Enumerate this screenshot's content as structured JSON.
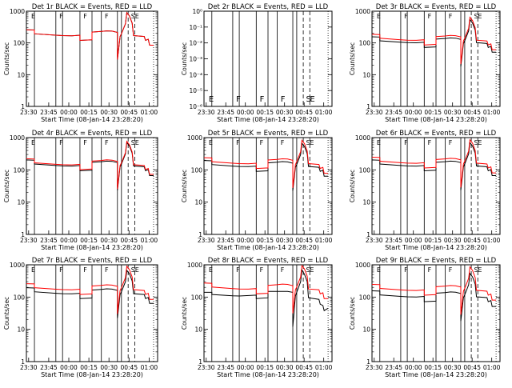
{
  "figure": {
    "background": "#ffffff",
    "axis_color": "#000000"
  },
  "chart_data": [
    {
      "type": "line",
      "title": "Det 1r  BLACK = Events, RED = LLD",
      "xlabel": "Start Time (08-Jan-14 23:28:20)",
      "ylabel": "Counts/sec",
      "yscale": "log",
      "ylim": [
        1,
        1000
      ],
      "x_ticks": [
        "23:30",
        "23:45",
        "00:00",
        "00:15",
        "00:30",
        "00:45",
        "01:00"
      ],
      "y_ticks": [
        "1",
        "10",
        "100",
        "1000"
      ],
      "markers": [
        "E",
        "F",
        "F",
        "F",
        "S",
        "E"
      ],
      "series": [
        {
          "name": "BLACK = Events",
          "color": "#000000",
          "profile": "std",
          "scale": 1.0
        },
        {
          "name": "RED = LLD",
          "color": "#ff0000",
          "profile": "std",
          "scale": 1.0
        }
      ]
    },
    {
      "type": "line",
      "title": "Det 2r  BLACK = Events, RED = LLD",
      "xlabel": "Start Time (08-Jan-14 23:28:20)",
      "ylabel": "Counts/sec",
      "yscale": "log",
      "ylim": [
        1,
        1e-06
      ],
      "x_ticks": [
        "23:30",
        "23:45",
        "00:00",
        "00:15",
        "00:30",
        "00:45",
        "01:00"
      ],
      "y_ticks": [
        "10⁻⁶",
        "10⁻⁵",
        "10⁻⁴",
        "10⁻³",
        "10⁻²",
        "10⁻¹",
        "10⁰"
      ],
      "markers": [
        "E",
        "F",
        "F",
        "F",
        "S",
        "E"
      ],
      "series": []
    },
    {
      "type": "line",
      "title": "Det 3r  BLACK = Events, RED = LLD",
      "xlabel": "Start Time (08-Jan-14 23:28:20)",
      "ylabel": "Counts/sec",
      "yscale": "log",
      "ylim": [
        1,
        1000
      ],
      "x_ticks": [
        "23:30",
        "23:45",
        "00:00",
        "00:15",
        "00:30",
        "00:45",
        "01:00"
      ],
      "y_ticks": [
        "1",
        "10",
        "100",
        "1000"
      ],
      "markers": [
        "E",
        "F",
        "F",
        "F",
        "S",
        "E"
      ],
      "series": [
        {
          "name": "BLACK = Events",
          "color": "#000000",
          "profile": "std",
          "scale": 0.6
        },
        {
          "name": "RED = LLD",
          "color": "#ff0000",
          "profile": "std",
          "scale": 0.72
        }
      ]
    },
    {
      "type": "line",
      "title": "Det 4r  BLACK = Events, RED = LLD",
      "xlabel": "Start Time (08-Jan-14 23:28:20)",
      "ylabel": "Counts/sec",
      "yscale": "log",
      "ylim": [
        1,
        1000
      ],
      "x_ticks": [
        "23:30",
        "23:45",
        "00:00",
        "00:15",
        "00:30",
        "00:45",
        "01:00"
      ],
      "y_ticks": [
        "1",
        "10",
        "100",
        "1000"
      ],
      "markers": [
        "E",
        "F",
        "F",
        "F",
        "S",
        "E"
      ],
      "series": [
        {
          "name": "BLACK = Events",
          "color": "#000000",
          "profile": "std",
          "scale": 0.78
        },
        {
          "name": "RED = LLD",
          "color": "#ff0000",
          "profile": "std",
          "scale": 0.85
        }
      ]
    },
    {
      "type": "line",
      "title": "Det 5r  BLACK = Events, RED = LLD",
      "xlabel": "Start Time (08-Jan-14 23:28:20)",
      "ylabel": "Counts/sec",
      "yscale": "log",
      "ylim": [
        1,
        1000
      ],
      "x_ticks": [
        "23:30",
        "23:45",
        "00:00",
        "00:15",
        "00:30",
        "00:45",
        "01:00"
      ],
      "y_ticks": [
        "1",
        "10",
        "100",
        "1000"
      ],
      "markers": [
        "E",
        "F",
        "F",
        "F",
        "S",
        "E"
      ],
      "series": [
        {
          "name": "BLACK = Events",
          "color": "#000000",
          "profile": "std",
          "scale": 0.75
        },
        {
          "name": "RED = LLD",
          "color": "#ff0000",
          "profile": "std",
          "scale": 0.92
        }
      ]
    },
    {
      "type": "line",
      "title": "Det 6r  BLACK = Events, RED = LLD",
      "xlabel": "Start Time (08-Jan-14 23:28:20)",
      "ylabel": "Counts/sec",
      "yscale": "log",
      "ylim": [
        1,
        1000
      ],
      "x_ticks": [
        "23:30",
        "23:45",
        "00:00",
        "00:15",
        "00:30",
        "00:45",
        "01:00"
      ],
      "y_ticks": [
        "1",
        "10",
        "100",
        "1000"
      ],
      "markers": [
        "E",
        "F",
        "F",
        "F",
        "S",
        "E"
      ],
      "series": [
        {
          "name": "BLACK = Events",
          "color": "#000000",
          "profile": "std",
          "scale": 0.78
        },
        {
          "name": "RED = LLD",
          "color": "#ff0000",
          "profile": "std",
          "scale": 0.95
        }
      ]
    },
    {
      "type": "line",
      "title": "Det 7r  BLACK = Events, RED = LLD",
      "xlabel": "Start Time (08-Jan-14 23:28:20)",
      "ylabel": "Counts/sec",
      "yscale": "log",
      "ylim": [
        1,
        1000
      ],
      "x_ticks": [
        "23:30",
        "23:45",
        "00:00",
        "00:15",
        "00:30",
        "00:45",
        "01:00"
      ],
      "y_ticks": [
        "1",
        "10",
        "100",
        "1000"
      ],
      "markers": [
        "E",
        "F",
        "F",
        "F",
        "S",
        "E"
      ],
      "series": [
        {
          "name": "BLACK = Events",
          "color": "#000000",
          "profile": "std",
          "scale": 0.75
        },
        {
          "name": "RED = LLD",
          "color": "#ff0000",
          "profile": "std",
          "scale": 1.0
        }
      ]
    },
    {
      "type": "line",
      "title": "Det 8r  BLACK = Events, RED = LLD",
      "xlabel": "Start Time (08-Jan-14 23:28:20)",
      "ylabel": "Counts/sec",
      "yscale": "log",
      "ylim": [
        1,
        1000
      ],
      "x_ticks": [
        "23:30",
        "23:45",
        "00:00",
        "00:15",
        "00:30",
        "00:45",
        "01:00"
      ],
      "y_ticks": [
        "1",
        "10",
        "100",
        "1000"
      ],
      "markers": [
        "E",
        "F",
        "F",
        "F",
        "S",
        "E"
      ],
      "series": [
        {
          "name": "BLACK = Events",
          "color": "#000000",
          "profile": "low",
          "scale": 1.0
        },
        {
          "name": "RED = LLD",
          "color": "#ff0000",
          "profile": "std",
          "scale": 1.05
        }
      ]
    },
    {
      "type": "line",
      "title": "Det 9r  BLACK = Events, RED = LLD",
      "xlabel": "Start Time (08-Jan-14 23:28:20)",
      "ylabel": "Counts/sec",
      "yscale": "log",
      "ylim": [
        1,
        1000
      ],
      "x_ticks": [
        "23:30",
        "23:45",
        "00:00",
        "00:15",
        "00:30",
        "00:45",
        "01:00"
      ],
      "y_ticks": [
        "1",
        "10",
        "100",
        "1000"
      ],
      "markers": [
        "E",
        "F",
        "F",
        "F",
        "S",
        "E"
      ],
      "series": [
        {
          "name": "BLACK = Events",
          "color": "#000000",
          "profile": "std",
          "scale": 0.6
        },
        {
          "name": "RED = LLD",
          "color": "#ff0000",
          "profile": "std",
          "scale": 0.95
        }
      ]
    }
  ]
}
